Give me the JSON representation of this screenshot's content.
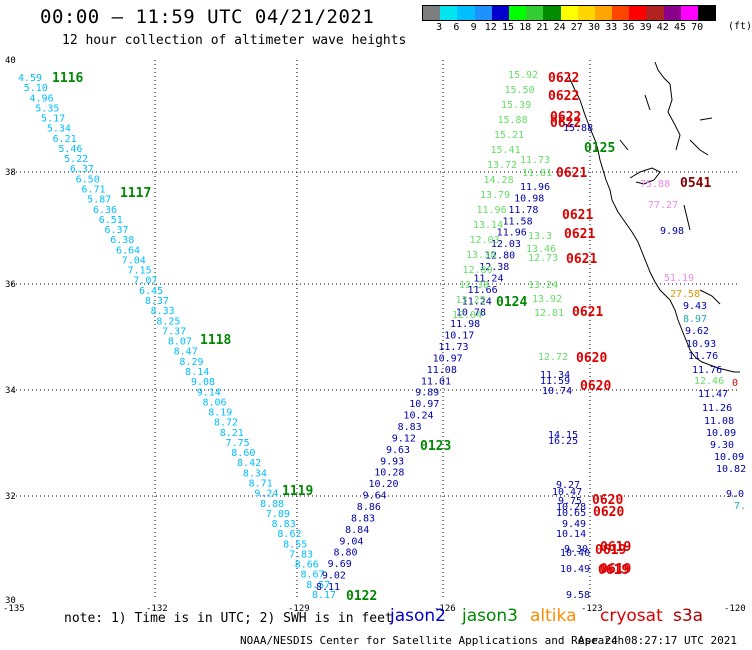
{
  "header": {
    "title": "00:00 – 11:59 UTC 04/21/2021",
    "subtitle": "12 hour collection of altimeter wave heights"
  },
  "legend": {
    "labels": [
      "3",
      "6",
      "9",
      "12",
      "15",
      "18",
      "21",
      "24",
      "27",
      "30",
      "33",
      "36",
      "39",
      "42",
      "45",
      "70"
    ],
    "unit": "(ft)",
    "colors": [
      "#7f7f7f",
      "#00e5ee",
      "#00bfff",
      "#1e90ff",
      "#0000cd",
      "#00ff00",
      "#32cd32",
      "#008b00",
      "#ffff00",
      "#ffd700",
      "#ffa500",
      "#ff4500",
      "#ff0000",
      "#b22222",
      "#8b008b",
      "#ff00ff",
      "#000000"
    ]
  },
  "axes": {
    "x_ticks": [
      "-135",
      "-132",
      "-129",
      "-126",
      "-123",
      "-120"
    ],
    "y_ticks": [
      "40",
      "38",
      "36",
      "34",
      "32",
      "30"
    ]
  },
  "footer": {
    "note": "note: 1) Time is in UTC; 2) SWH is in feet",
    "credit": "NOAA/NESDIS Center for Satellite Applications and Research",
    "timestamp": "Apr 24 08:27:17 UTC 2021"
  },
  "satellites": [
    {
      "name": "jason2",
      "color": "#0000cc"
    },
    {
      "name": "jason3",
      "color": "#008800"
    },
    {
      "name": "altika",
      "color": "#ff8c00"
    },
    {
      "name": "cryosat",
      "color": "#dd0000"
    },
    {
      "name": "s3a",
      "color": "#aa0000"
    }
  ],
  "colors": {
    "cyan": "#00bfff",
    "navy": "#0000aa",
    "lightgreen": "#66dd66",
    "green": "#008800",
    "red": "#dd0000",
    "maroon": "#880000",
    "pink": "#ee88ee",
    "orange": "#dd9900",
    "teal": "#22aaaa"
  },
  "tracks": {
    "track1_values": [
      "4.59",
      "5.10",
      "4.96",
      "5.35",
      "5.17",
      "5.34",
      "6.21",
      "5.46",
      "5.22",
      "6.37",
      "6.50",
      "6.71",
      "5.87",
      "6.36",
      "6.51",
      "6.37",
      "6.38",
      "6.64",
      "7.04",
      "7.15",
      "7.07",
      "6.45",
      "8.37",
      "8.33",
      "8.25",
      "7.37",
      "8.07",
      "8.47",
      "8.29",
      "8.14",
      "9.08",
      "9.14",
      "8.06",
      "8.19",
      "8.72",
      "8.21",
      "7.75",
      "8.60",
      "8.42",
      "8.34",
      "8.71",
      "9.24",
      "8.88",
      "7.89",
      "8.83",
      "8.62",
      "8.55",
      "7.83",
      "8.66",
      "8.67",
      "8.57",
      "8.17"
    ],
    "track2_values": [
      "8.11",
      "9.02",
      "9.69",
      "8.80",
      "9.04",
      "8.84",
      "8.83",
      "8.86",
      "9.64",
      "10.20",
      "10.28",
      "9.93",
      "9.63",
      "9.12",
      "8.83",
      "10.24",
      "10.97",
      "9.89",
      "11.01",
      "11.08",
      "10.97",
      "11.73",
      "10.17",
      "11.98",
      "10.78",
      "11.24",
      "11.66",
      "11.24",
      "12.38",
      "12.80",
      "12.03",
      "11.96",
      "11.58",
      "11.78",
      "10.98",
      "11.96"
    ],
    "jason3_values": [
      "12.04",
      "13.23",
      "12.38",
      "12.80",
      "13.38",
      "12.03",
      "13.14",
      "11.96",
      "13.79",
      "14.28",
      "13.72",
      "15.41",
      "15.21",
      "15.88",
      "15.39",
      "15.50",
      "15.92"
    ],
    "track1_color_idx": "cyan",
    "track2_color_idx": "navy"
  },
  "pass_labels": [
    {
      "text": "1116",
      "kind": "green"
    },
    {
      "text": "1117",
      "kind": "green"
    },
    {
      "text": "1118",
      "kind": "green"
    },
    {
      "text": "1119",
      "kind": "green"
    },
    {
      "text": "0122",
      "kind": "green"
    },
    {
      "text": "0123",
      "kind": "green"
    },
    {
      "text": "0124",
      "kind": "green"
    },
    {
      "text": "0125",
      "kind": "green"
    },
    {
      "text": "0541",
      "kind": "maroon"
    },
    {
      "text": "0622",
      "kind": "red"
    },
    {
      "text": "0622",
      "kind": "red"
    },
    {
      "text": "0622",
      "kind": "red"
    },
    {
      "text": "0622",
      "kind": "red"
    },
    {
      "text": "0621",
      "kind": "red"
    },
    {
      "text": "0621",
      "kind": "red"
    },
    {
      "text": "0621",
      "kind": "red"
    },
    {
      "text": "0621",
      "kind": "red"
    },
    {
      "text": "0621",
      "kind": "red"
    },
    {
      "text": "0620",
      "kind": "red"
    },
    {
      "text": "0620",
      "kind": "red"
    },
    {
      "text": "0620",
      "kind": "red"
    },
    {
      "text": "0620",
      "kind": "red"
    },
    {
      "text": "0619",
      "kind": "red"
    },
    {
      "text": "0619",
      "kind": "red"
    },
    {
      "text": "0619",
      "kind": "red"
    },
    {
      "text": "0619",
      "kind": "red"
    }
  ],
  "extra_values": [
    {
      "text": "75.88",
      "kind": "pink"
    },
    {
      "text": "77.27",
      "kind": "pink"
    },
    {
      "text": "51.19",
      "kind": "pink"
    },
    {
      "text": "27.58",
      "kind": "orange"
    },
    {
      "text": "9.98",
      "kind": "navy"
    },
    {
      "text": "9.43",
      "kind": "navy"
    },
    {
      "text": "8.97",
      "kind": "teal"
    },
    {
      "text": "9.62",
      "kind": "navy"
    },
    {
      "text": "10.93",
      "kind": "navy"
    },
    {
      "text": "11.76",
      "kind": "navy"
    },
    {
      "text": "11.76",
      "kind": "navy"
    },
    {
      "text": "12.46",
      "kind": "lightgreen"
    },
    {
      "text": "11.47",
      "kind": "navy"
    },
    {
      "text": "11.26",
      "kind": "navy"
    },
    {
      "text": "11.08",
      "kind": "navy"
    },
    {
      "text": "10.09",
      "kind": "navy"
    },
    {
      "text": "9.30",
      "kind": "navy"
    },
    {
      "text": "10.09",
      "kind": "navy"
    },
    {
      "text": "10.82",
      "kind": "navy"
    },
    {
      "text": "9.0",
      "kind": "navy"
    },
    {
      "text": "7.",
      "kind": "teal"
    },
    {
      "text": "12.72",
      "kind": "lightgreen"
    },
    {
      "text": "11.34",
      "kind": "navy"
    },
    {
      "text": "11.59",
      "kind": "navy"
    },
    {
      "text": "10.74",
      "kind": "navy"
    },
    {
      "text": "14.15",
      "kind": "navy"
    },
    {
      "text": "16.25",
      "kind": "navy"
    },
    {
      "text": "9.27",
      "kind": "navy"
    },
    {
      "text": "10.47",
      "kind": "navy"
    },
    {
      "text": "9.75",
      "kind": "navy"
    },
    {
      "text": "10.28",
      "kind": "navy"
    },
    {
      "text": "10.65",
      "kind": "navy"
    },
    {
      "text": "9.49",
      "kind": "navy"
    },
    {
      "text": "10.14",
      "kind": "navy"
    },
    {
      "text": "9.30",
      "kind": "navy"
    },
    {
      "text": "10.40",
      "kind": "navy"
    },
    {
      "text": "10.49",
      "kind": "navy"
    },
    {
      "text": "9.58",
      "kind": "navy"
    },
    {
      "text": "13.24",
      "kind": "lightgreen"
    },
    {
      "text": "13.92",
      "kind": "lightgreen"
    },
    {
      "text": "12.81",
      "kind": "lightgreen"
    },
    {
      "text": "12.73",
      "kind": "lightgreen"
    },
    {
      "text": "13.46",
      "kind": "lightgreen"
    },
    {
      "text": "11.73",
      "kind": "lightgreen"
    },
    {
      "text": "11.81",
      "kind": "lightgreen"
    },
    {
      "text": "13.3",
      "kind": "lightgreen"
    },
    {
      "text": "15.88",
      "kind": "navy"
    },
    {
      "text": "0",
      "kind": "red"
    }
  ]
}
